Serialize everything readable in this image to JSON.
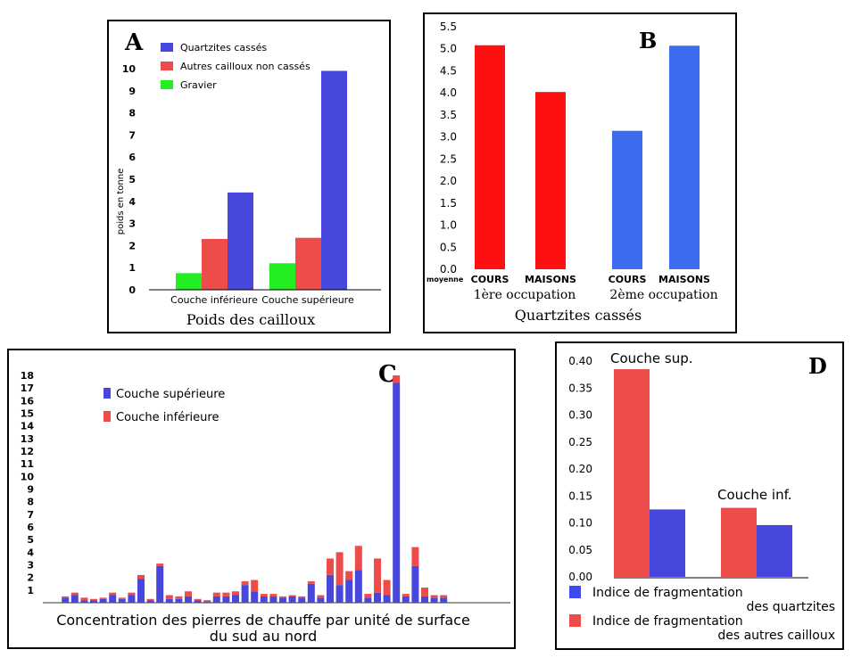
{
  "chart_data": [
    {
      "panel": "A",
      "type": "bar",
      "title": "Poids des cailloux",
      "ylabel": "poids en tonne",
      "ylim": [
        0,
        10
      ],
      "yticks": [
        "0",
        "1",
        "2",
        "3",
        "4",
        "5",
        "6",
        "7",
        "8",
        "9",
        "10"
      ],
      "categories": [
        "Couche inférieure",
        "Couche supérieure"
      ],
      "series": [
        {
          "name": "Gravier",
          "color": "#22ee22",
          "values": [
            0.75,
            1.2
          ]
        },
        {
          "name": "Autres cailloux non cassés",
          "color": "#ee4b4b",
          "values": [
            2.3,
            2.35
          ]
        },
        {
          "name": "Quartzites cassés",
          "color": "#4747dd",
          "values": [
            4.4,
            9.9
          ]
        }
      ],
      "legend_order": [
        "Quartzites cassés",
        "Autres cailloux non cassés",
        "Gravier"
      ],
      "legend": "top-left",
      "grid": false
    },
    {
      "panel": "B",
      "type": "bar",
      "title": "Quartzites cassés",
      "ylim": [
        0,
        5.5
      ],
      "yticks": [
        "0.0",
        "0.5",
        "1.0",
        "1.5",
        "2.0",
        "2.5",
        "3.0",
        "3.5",
        "4.0",
        "4.5",
        "5.0",
        "5.5"
      ],
      "axis_note": "moyenne",
      "groups": [
        "1ère occupation",
        "2ème occupation"
      ],
      "categories": [
        "COURS",
        "MAISONS",
        "COURS",
        "MAISONS"
      ],
      "values": [
        5.08,
        4.02,
        3.14,
        5.07
      ],
      "colors": [
        "#ff1010",
        "#ff1010",
        "#3d6cf0",
        "#3d6cf0"
      ],
      "grid": false
    },
    {
      "panel": "C",
      "type": "bar",
      "stacked": true,
      "title": "Concentration des pierres de chauffe par unité de surface",
      "subtitle": "du sud au nord",
      "ylim": [
        0,
        18
      ],
      "yticks": [
        "1",
        "2",
        "3",
        "4",
        "5",
        "6",
        "7",
        "8",
        "9",
        "10",
        "11",
        "12",
        "13",
        "14",
        "15",
        "16",
        "17",
        "18"
      ],
      "series": [
        {
          "name": "Couche supérieure",
          "color": "#4747dd",
          "values": [
            0,
            0,
            0.4,
            0.6,
            0.2,
            0.2,
            0.3,
            0.6,
            0.3,
            0.6,
            1.9,
            0.2,
            2.9,
            0.3,
            0.3,
            0.5,
            0.2,
            0.1,
            0.5,
            0.5,
            0.6,
            1.4,
            0.9,
            0.5,
            0.5,
            0.4,
            0.5,
            0.4,
            1.5,
            0.4,
            2.2,
            1.4,
            1.8,
            2.6,
            0.4,
            0.8,
            0.6,
            17.4,
            0.5,
            2.9,
            0.5,
            0.4,
            0.4
          ]
        },
        {
          "name": "Couche inférieure",
          "color": "#ee4b4b",
          "values": [
            0,
            0,
            0.1,
            0.2,
            0.2,
            0.1,
            0.1,
            0.2,
            0.1,
            0.2,
            0.3,
            0.1,
            0.2,
            0.3,
            0.2,
            0.4,
            0.1,
            0.1,
            0.3,
            0.3,
            0.3,
            0.3,
            0.9,
            0.2,
            0.2,
            0.1,
            0.1,
            0.1,
            0.2,
            0.2,
            1.3,
            2.6,
            0.7,
            1.9,
            0.3,
            2.7,
            1.2,
            0.6,
            0.2,
            1.5,
            0.7,
            0.2,
            0.2
          ]
        }
      ],
      "legend": "top-left",
      "grid": false
    },
    {
      "panel": "D",
      "type": "bar",
      "ylim": [
        0,
        0.4
      ],
      "yticks": [
        "0.00",
        "0.05",
        "0.10",
        "0.15",
        "0.20",
        "0.25",
        "0.30",
        "0.35",
        "0.40"
      ],
      "categories": [
        "Couche sup.",
        "Couche inf."
      ],
      "series": [
        {
          "name": "Indice de fragmentation des autres cailloux",
          "color": "#ee4b4b",
          "values": [
            0.385,
            0.128
          ]
        },
        {
          "name": "Indice de fragmentation des quartzites",
          "color": "#4747dd",
          "values": [
            0.125,
            0.096
          ]
        }
      ],
      "legend_lines": [
        {
          "color": "#3d4cf0",
          "line1": "Indice de fragmentation",
          "line2": "des quartzites"
        },
        {
          "color": "#ee4b4b",
          "line1": "Indice de fragmentation",
          "line2": "des autres cailloux"
        }
      ],
      "legend": "bottom",
      "grid": false
    }
  ],
  "panel_letters": [
    "A",
    "B",
    "C",
    "D"
  ]
}
